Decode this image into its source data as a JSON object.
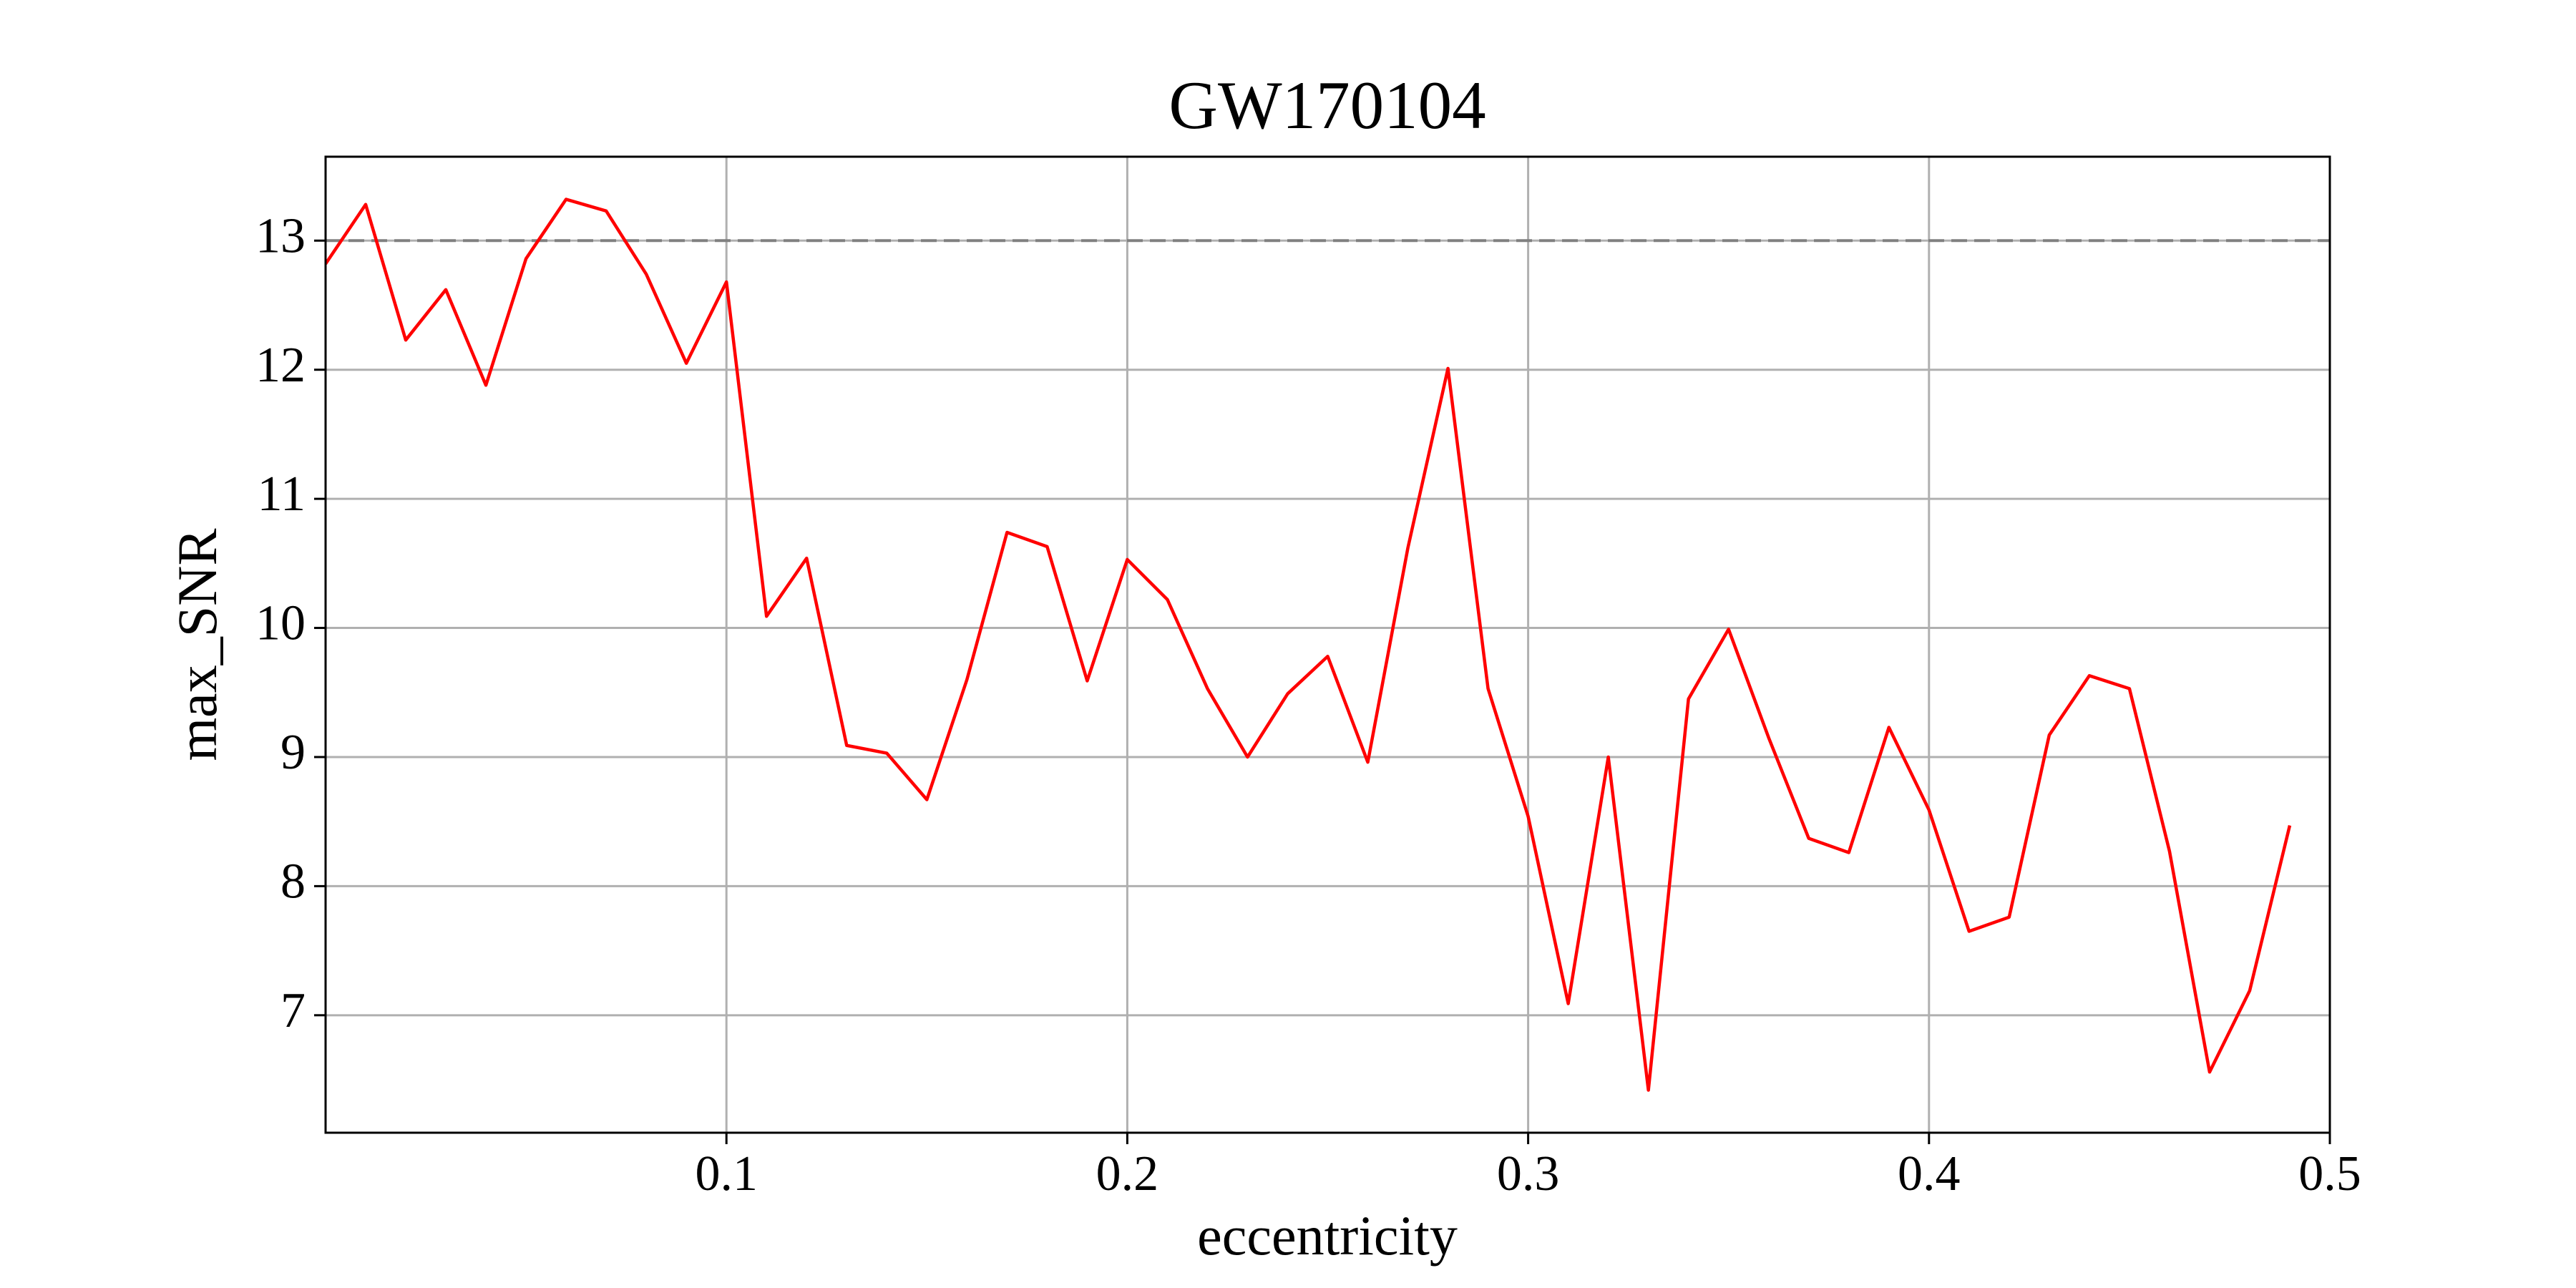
{
  "chart_data": {
    "type": "line",
    "title": "GW170104",
    "xlabel": "eccentricity",
    "ylabel": "max_SNR",
    "x": [
      0,
      0.01,
      0.02,
      0.03,
      0.04,
      0.05,
      0.06,
      0.07,
      0.08,
      0.09,
      0.1,
      0.11,
      0.12,
      0.13,
      0.14,
      0.15,
      0.16,
      0.17,
      0.18,
      0.19,
      0.2,
      0.21,
      0.22,
      0.23,
      0.24,
      0.25,
      0.26,
      0.27,
      0.28,
      0.29,
      0.3,
      0.31,
      0.32,
      0.33,
      0.34,
      0.35,
      0.36,
      0.37,
      0.38,
      0.39,
      0.4,
      0.41,
      0.42,
      0.43,
      0.44,
      0.45,
      0.46,
      0.47,
      0.48,
      0.49
    ],
    "series": [
      {
        "color": "#ff0000",
        "values": [
          12.82,
          13.28,
          12.23,
          12.62,
          11.88,
          12.86,
          13.32,
          13.23,
          12.74,
          12.05,
          12.68,
          10.09,
          10.54,
          9.09,
          9.03,
          8.67,
          9.6,
          10.74,
          10.63,
          9.59,
          10.53,
          10.22,
          9.53,
          9.0,
          9.49,
          9.78,
          8.96,
          10.62,
          12.01,
          9.53,
          8.54,
          7.09,
          9.0,
          6.42,
          9.45,
          9.99,
          9.15,
          8.37,
          8.26,
          9.23,
          8.59,
          7.65,
          7.76,
          9.17,
          9.63,
          9.53,
          8.27,
          6.56,
          7.19,
          8.47
        ]
      }
    ],
    "hline": {
      "value": 13,
      "color": "#808080",
      "style": "dashed"
    },
    "xlim": [
      0,
      0.5
    ],
    "xticks": [
      0.1,
      0.2,
      0.3,
      0.4,
      0.5
    ],
    "ylim": [
      6.09,
      13.65
    ],
    "yticks": [
      7,
      8,
      9,
      10,
      11,
      12,
      13
    ],
    "grid": true
  }
}
